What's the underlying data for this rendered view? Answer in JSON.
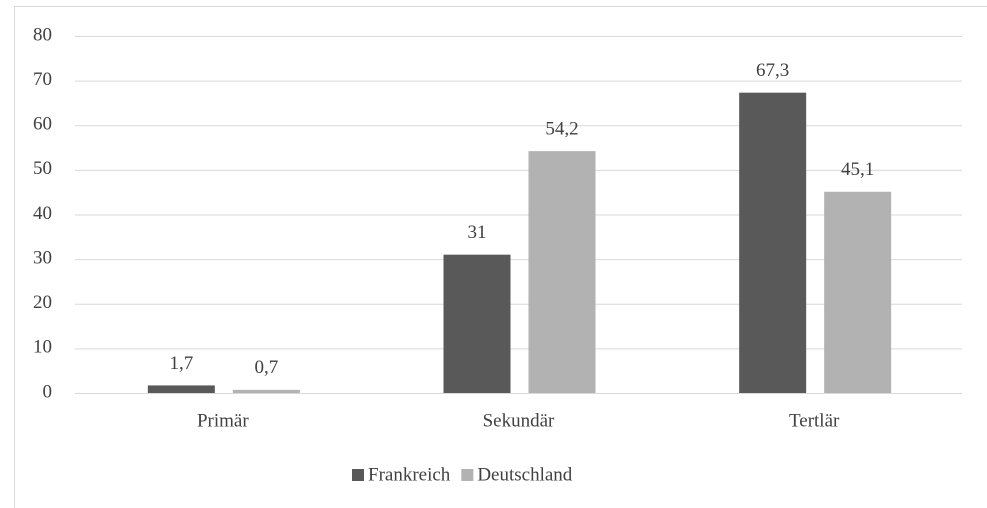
{
  "chart_data": {
    "type": "bar",
    "categories": [
      "Primär",
      "Sekundär",
      "Tertlär"
    ],
    "series": [
      {
        "name": "Frankreich",
        "color": "#595959",
        "values": [
          1.7,
          31,
          67.3
        ],
        "value_labels": [
          "1,7",
          "31",
          "67,3"
        ]
      },
      {
        "name": "Deutschland",
        "color": "#b2b2b2",
        "values": [
          0.7,
          54.2,
          45.1
        ],
        "value_labels": [
          "0,7",
          "54,2",
          "45,1"
        ]
      }
    ],
    "ylim": [
      0,
      80
    ],
    "yticks": [
      0,
      10,
      20,
      30,
      40,
      50,
      60,
      70,
      80
    ],
    "grid": true,
    "legend": "bottom"
  }
}
